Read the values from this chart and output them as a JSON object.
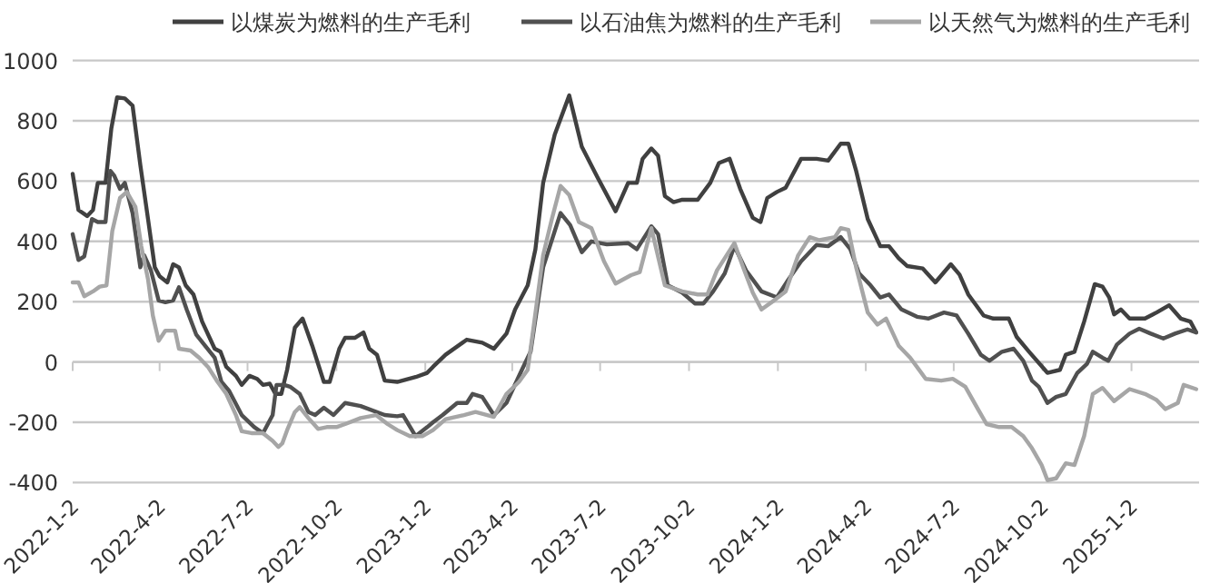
{
  "chart_data": {
    "type": "line",
    "xlim": [
      "2022-01-02",
      "2025-03-13"
    ],
    "ylim": [
      -400,
      1000
    ],
    "yticks": [
      -400,
      -200,
      0,
      200,
      400,
      600,
      800,
      1000
    ],
    "xticks": [
      {
        "value": "2022-01-02",
        "label": "2022-1-2"
      },
      {
        "value": "2022-04-02",
        "label": "2022-4-2"
      },
      {
        "value": "2022-07-02",
        "label": "2022-7-2"
      },
      {
        "value": "2022-10-02",
        "label": "2022-10-2"
      },
      {
        "value": "2023-01-02",
        "label": "2023-1-2"
      },
      {
        "value": "2023-04-02",
        "label": "2023-4-2"
      },
      {
        "value": "2023-07-02",
        "label": "2023-7-2"
      },
      {
        "value": "2023-10-02",
        "label": "2023-10-2"
      },
      {
        "value": "2024-01-02",
        "label": "2024-1-2"
      },
      {
        "value": "2024-04-02",
        "label": "2024-4-2"
      },
      {
        "value": "2024-07-02",
        "label": "2024-7-2"
      },
      {
        "value": "2024-10-02",
        "label": "2024-10-2"
      },
      {
        "value": "2025-01-02",
        "label": "2025-1-2"
      }
    ],
    "grid": "y",
    "legend": "top",
    "marker": "none",
    "line_style": "solid",
    "series": [
      {
        "name": "以煤炭为燃料的生产毛利",
        "color": "#404040",
        "x": [
          "2022-01-02",
          "2022-01-08",
          "2022-01-17",
          "2022-01-23",
          "2022-01-28",
          "2022-02-05",
          "2022-02-11",
          "2022-02-17",
          "2022-02-25",
          "2022-03-05",
          "2022-03-13",
          "2022-03-21",
          "2022-03-28",
          "2022-04-02",
          "2022-04-10",
          "2022-04-16",
          "2022-04-22",
          "2022-04-29",
          "2022-05-07",
          "2022-05-16",
          "2022-05-29",
          "2022-06-04",
          "2022-06-10",
          "2022-06-20",
          "2022-06-26",
          "2022-07-04",
          "2022-07-12",
          "2022-07-18",
          "2022-07-25",
          "2022-07-31",
          "2022-08-06",
          "2022-08-12",
          "2022-08-20",
          "2022-08-28",
          "2022-09-07",
          "2022-09-19",
          "2022-09-25",
          "2022-10-05",
          "2022-10-11",
          "2022-10-21",
          "2022-10-30",
          "2022-11-05",
          "2022-11-13",
          "2022-11-21",
          "2022-12-04",
          "2022-12-23",
          "2023-01-04",
          "2023-01-10",
          "2023-01-23",
          "2023-02-14",
          "2023-03-02",
          "2023-03-14",
          "2023-03-27",
          "2023-04-05",
          "2023-04-18",
          "2023-04-26",
          "2023-05-04",
          "2023-05-16",
          "2023-05-31",
          "2023-06-13",
          "2023-06-29",
          "2023-07-18",
          "2023-07-31",
          "2023-08-09",
          "2023-08-15",
          "2023-08-24",
          "2023-08-31",
          "2023-09-07",
          "2023-09-16",
          "2023-09-25",
          "2023-10-11",
          "2023-10-24",
          "2023-11-02",
          "2023-11-13",
          "2023-11-24",
          "2023-12-07",
          "2023-12-15",
          "2023-12-22",
          "2024-01-01",
          "2024-01-10",
          "2024-01-26",
          "2024-02-11",
          "2024-02-23",
          "2024-03-07",
          "2024-03-15",
          "2024-03-23",
          "2024-04-04",
          "2024-04-17",
          "2024-04-26",
          "2024-05-06",
          "2024-05-15",
          "2024-05-31",
          "2024-06-13",
          "2024-06-29",
          "2024-07-08",
          "2024-07-17",
          "2024-08-02",
          "2024-08-12",
          "2024-08-28",
          "2024-09-05",
          "2024-09-18",
          "2024-10-07",
          "2024-10-20",
          "2024-10-26",
          "2024-11-04",
          "2024-11-14",
          "2024-11-25",
          "2024-12-03",
          "2024-12-10",
          "2024-12-15",
          "2024-12-22",
          "2024-12-31",
          "2025-01-16",
          "2025-01-28",
          "2025-02-10",
          "2025-02-22",
          "2025-03-04",
          "2025-03-10"
        ],
        "values": [
          624,
          504,
          484,
          504,
          594,
          594,
          774,
          878,
          874,
          850,
          654,
          474,
          314,
          284,
          264,
          324,
          314,
          254,
          224,
          134,
          44,
          34,
          -16,
          -46,
          -76,
          -46,
          -56,
          -76,
          -72,
          -106,
          -106,
          -26,
          114,
          144,
          54,
          -66,
          -66,
          44,
          80,
          80,
          98,
          44,
          24,
          -62,
          -66,
          -50,
          -36,
          -16,
          24,
          74,
          64,
          44,
          94,
          174,
          254,
          374,
          594,
          754,
          884,
          714,
          614,
          500,
          594,
          594,
          674,
          708,
          684,
          550,
          530,
          538,
          538,
          594,
          660,
          674,
          574,
          478,
          464,
          544,
          564,
          578,
          674,
          674,
          668,
          724,
          724,
          634,
          474,
          384,
          384,
          344,
          318,
          310,
          264,
          324,
          290,
          224,
          154,
          144,
          144,
          84,
          34,
          -36,
          -26,
          24,
          34,
          134,
          258,
          250,
          214,
          158,
          174,
          144,
          144,
          164,
          188,
          144,
          134,
          98
        ]
      },
      {
        "name": "以石油焦为燃料的生产毛利",
        "color": "#505050",
        "x": [
          "2022-01-02",
          "2022-01-08",
          "2022-01-14",
          "2022-01-22",
          "2022-01-28",
          "2022-02-05",
          "2022-02-10",
          "2022-02-14",
          "2022-02-20",
          "2022-02-25",
          "2022-03-05",
          "2022-03-13",
          "2022-03-17",
          "2022-03-24",
          "2022-04-01",
          "2022-04-08",
          "2022-04-16",
          "2022-04-22",
          "2022-04-30",
          "2022-05-10",
          "2022-05-19",
          "2022-05-29",
          "2022-06-05",
          "2022-06-13",
          "2022-06-26",
          "2022-07-09",
          "2022-07-18",
          "2022-07-28",
          "2022-08-01",
          "2022-08-09",
          "2022-08-15",
          "2022-08-25",
          "2022-09-03",
          "2022-09-10",
          "2022-09-19",
          "2022-09-29",
          "2022-10-11",
          "2022-10-27",
          "2022-11-21",
          "2022-12-04",
          "2022-12-10",
          "2022-12-23",
          "2023-01-04",
          "2023-01-10",
          "2023-01-20",
          "2023-02-04",
          "2023-02-14",
          "2023-02-20",
          "2023-03-02",
          "2023-03-14",
          "2023-03-27",
          "2023-04-12",
          "2023-04-21",
          "2023-05-04",
          "2023-05-22",
          "2023-06-01",
          "2023-06-13",
          "2023-06-23",
          "2023-07-09",
          "2023-07-31",
          "2023-08-09",
          "2023-08-24",
          "2023-08-31",
          "2023-09-10",
          "2023-09-25",
          "2023-10-08",
          "2023-10-17",
          "2023-10-27",
          "2023-11-08",
          "2023-11-18",
          "2023-11-30",
          "2023-12-16",
          "2024-01-01",
          "2024-01-13",
          "2024-01-26",
          "2024-02-11",
          "2024-02-23",
          "2024-03-07",
          "2024-03-17",
          "2024-03-26",
          "2024-04-07",
          "2024-04-17",
          "2024-04-26",
          "2024-05-09",
          "2024-05-25",
          "2024-06-06",
          "2024-06-22",
          "2024-07-05",
          "2024-07-17",
          "2024-07-30",
          "2024-08-08",
          "2024-08-21",
          "2024-09-02",
          "2024-09-12",
          "2024-09-21",
          "2024-09-28",
          "2024-10-07",
          "2024-10-16",
          "2024-10-26",
          "2024-11-07",
          "2024-11-17",
          "2024-11-23",
          "2024-12-03",
          "2024-12-09",
          "2024-12-18",
          "2024-12-31",
          "2025-01-10",
          "2025-01-22",
          "2025-02-04",
          "2025-02-16",
          "2025-03-01",
          "2025-03-10"
        ],
        "values": [
          424,
          338,
          350,
          474,
          464,
          464,
          634,
          618,
          574,
          594,
          494,
          314,
          354,
          304,
          204,
          198,
          204,
          248,
          174,
          90,
          54,
          14,
          -66,
          -96,
          -176,
          -216,
          -236,
          -176,
          -76,
          -76,
          -82,
          -106,
          -166,
          -176,
          -152,
          -176,
          -136,
          -146,
          -176,
          -180,
          -176,
          -246,
          -216,
          -200,
          -176,
          -136,
          -136,
          -106,
          -116,
          -176,
          -136,
          -26,
          34,
          314,
          494,
          454,
          364,
          400,
          390,
          394,
          374,
          450,
          424,
          254,
          230,
          194,
          194,
          234,
          294,
          384,
          304,
          234,
          214,
          274,
          334,
          388,
          384,
          414,
          374,
          294,
          254,
          214,
          224,
          174,
          150,
          144,
          164,
          154,
          94,
          24,
          4,
          34,
          44,
          4,
          -62,
          -82,
          -136,
          -116,
          -106,
          -36,
          -6,
          34,
          14,
          4,
          58,
          94,
          110,
          94,
          78,
          94,
          108,
          98
        ]
      },
      {
        "name": "以天然气为燃料的生产毛利",
        "color": "#a6a6a6",
        "x": [
          "2022-01-02",
          "2022-01-08",
          "2022-01-14",
          "2022-01-23",
          "2022-01-30",
          "2022-02-06",
          "2022-02-12",
          "2022-02-20",
          "2022-02-27",
          "2022-03-08",
          "2022-03-14",
          "2022-03-21",
          "2022-03-26",
          "2022-04-01",
          "2022-04-08",
          "2022-04-18",
          "2022-04-22",
          "2022-05-04",
          "2022-05-13",
          "2022-05-22",
          "2022-06-01",
          "2022-06-10",
          "2022-06-20",
          "2022-06-26",
          "2022-07-06",
          "2022-07-18",
          "2022-07-28",
          "2022-08-03",
          "2022-08-07",
          "2022-08-12",
          "2022-08-20",
          "2022-08-25",
          "2022-09-03",
          "2022-09-13",
          "2022-09-22",
          "2022-10-02",
          "2022-10-11",
          "2022-10-27",
          "2022-11-12",
          "2022-11-24",
          "2022-12-04",
          "2022-12-17",
          "2022-12-30",
          "2023-01-10",
          "2023-01-23",
          "2023-02-11",
          "2023-02-23",
          "2023-03-14",
          "2023-03-27",
          "2023-04-09",
          "2023-04-18",
          "2023-04-24",
          "2023-05-04",
          "2023-05-13",
          "2023-05-22",
          "2023-05-31",
          "2023-06-10",
          "2023-06-23",
          "2023-07-06",
          "2023-07-18",
          "2023-08-03",
          "2023-08-12",
          "2023-08-24",
          "2023-09-07",
          "2023-09-25",
          "2023-10-11",
          "2023-10-21",
          "2023-10-31",
          "2023-11-08",
          "2023-11-18",
          "2023-11-27",
          "2023-12-07",
          "2023-12-16",
          "2023-12-29",
          "2024-01-10",
          "2024-01-23",
          "2024-02-04",
          "2024-02-14",
          "2024-03-01",
          "2024-03-07",
          "2024-03-15",
          "2024-03-23",
          "2024-04-04",
          "2024-04-14",
          "2024-04-23",
          "2024-05-06",
          "2024-05-18",
          "2024-06-03",
          "2024-06-19",
          "2024-07-01",
          "2024-07-14",
          "2024-07-27",
          "2024-08-05",
          "2024-08-18",
          "2024-08-31",
          "2024-09-12",
          "2024-09-21",
          "2024-10-01",
          "2024-10-07",
          "2024-10-16",
          "2024-10-26",
          "2024-11-04",
          "2024-11-14",
          "2024-11-23",
          "2024-12-03",
          "2024-12-15",
          "2024-12-31",
          "2025-01-16",
          "2025-01-28",
          "2025-02-06",
          "2025-02-19",
          "2025-02-25",
          "2025-03-10"
        ],
        "values": [
          264,
          264,
          218,
          234,
          250,
          254,
          434,
          544,
          564,
          514,
          384,
          274,
          154,
          70,
          104,
          104,
          44,
          38,
          14,
          -16,
          -66,
          -106,
          -176,
          -230,
          -236,
          -236,
          -262,
          -282,
          -270,
          -226,
          -166,
          -150,
          -186,
          -222,
          -216,
          -216,
          -206,
          -186,
          -176,
          -206,
          -226,
          -246,
          -246,
          -226,
          -190,
          -176,
          -166,
          -182,
          -106,
          -66,
          -26,
          114,
          354,
          474,
          584,
          554,
          464,
          444,
          334,
          260,
          288,
          298,
          444,
          254,
          234,
          224,
          224,
          304,
          344,
          394,
          314,
          230,
          174,
          204,
          234,
          354,
          414,
          404,
          414,
          444,
          438,
          314,
          164,
          124,
          144,
          54,
          14,
          -56,
          -62,
          -56,
          -82,
          -156,
          -206,
          -216,
          -216,
          -246,
          -286,
          -342,
          -392,
          -386,
          -336,
          -342,
          -246,
          -106,
          -86,
          -130,
          -90,
          -106,
          -126,
          -156,
          -136,
          -76,
          -90
        ]
      }
    ]
  }
}
